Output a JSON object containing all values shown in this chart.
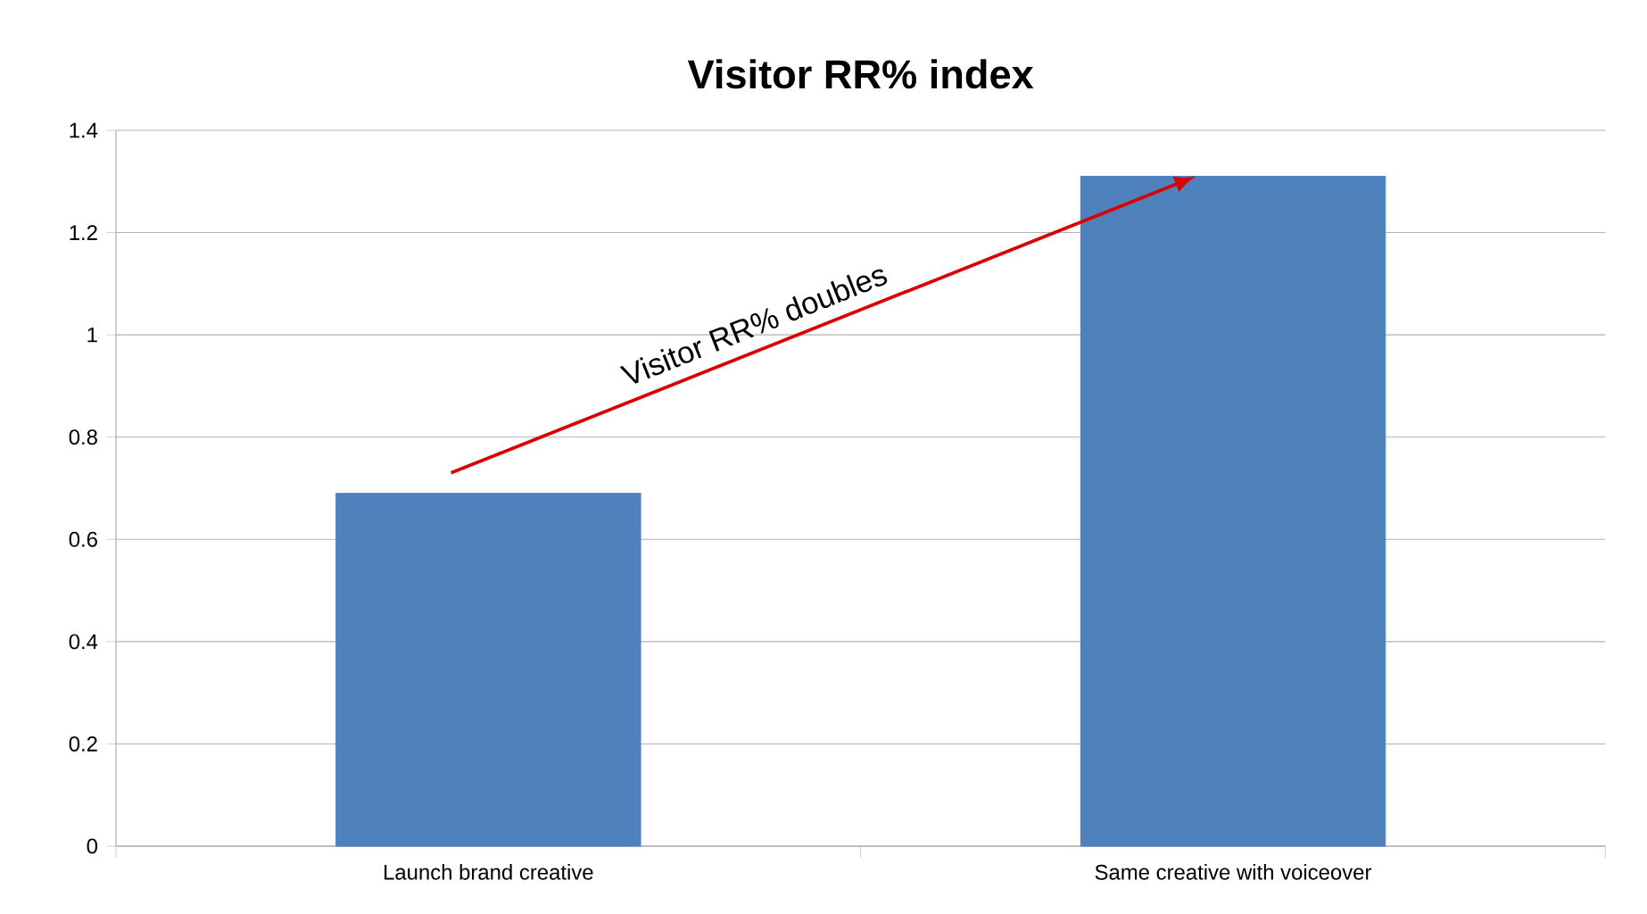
{
  "chart_data": {
    "type": "bar",
    "title": "Visitor RR% index",
    "categories": [
      "Launch brand creative",
      "Same creative with voiceover"
    ],
    "values": [
      0.69,
      1.31
    ],
    "color": "#4f81bd",
    "ylim": [
      0,
      1.4
    ],
    "yticks": [
      0,
      0.2,
      0.4,
      0.6,
      0.8,
      1,
      1.2,
      1.4
    ],
    "grid": "y",
    "annotations": [
      "Visitor RR% doubles"
    ]
  }
}
